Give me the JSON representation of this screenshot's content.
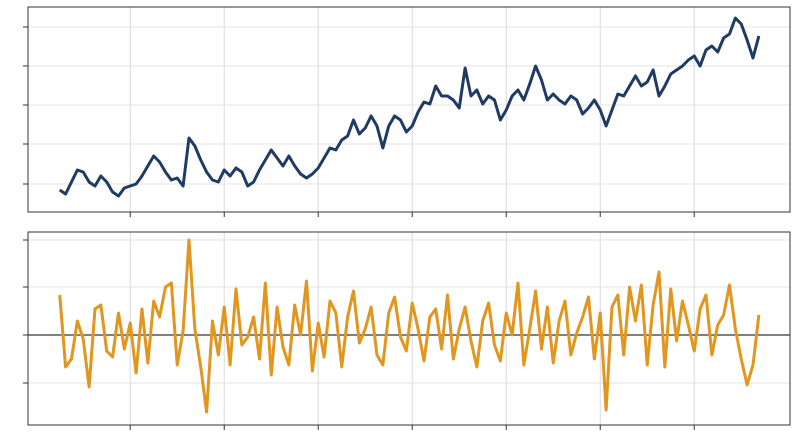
{
  "chart_data": [
    {
      "type": "line",
      "x": [
        0,
        1,
        2,
        3,
        4,
        5,
        6,
        7,
        8,
        9,
        10,
        11,
        12,
        13,
        14,
        15,
        16,
        17,
        18,
        19,
        20,
        21,
        22,
        23,
        24,
        25,
        26,
        27,
        28,
        29,
        30,
        31,
        32,
        33,
        34,
        35,
        36,
        37,
        38,
        39,
        40,
        41,
        42,
        43,
        44,
        45,
        46,
        47,
        48,
        49,
        50,
        51,
        52,
        53,
        54,
        55,
        56,
        57,
        58,
        59,
        60,
        61,
        62,
        63,
        64,
        65,
        66,
        67,
        68,
        69,
        70,
        71,
        72,
        73,
        74,
        75,
        76,
        77,
        78,
        79,
        80,
        81,
        82,
        83,
        84,
        85,
        86,
        87,
        88,
        89,
        90,
        91,
        92,
        93,
        94,
        95,
        96,
        97,
        98,
        99,
        100,
        101,
        102,
        103,
        104,
        105,
        106,
        107,
        108,
        109,
        110,
        111,
        112,
        113,
        114,
        115,
        116,
        117,
        118,
        119
      ],
      "series": [
        {
          "color": "#1f3b63",
          "values": [
            22,
            18,
            30,
            42,
            40,
            30,
            26,
            36,
            30,
            20,
            16,
            24,
            26,
            28,
            36,
            46,
            56,
            50,
            40,
            32,
            34,
            26,
            74,
            66,
            52,
            40,
            32,
            30,
            42,
            36,
            44,
            40,
            26,
            30,
            42,
            52,
            62,
            54,
            46,
            56,
            46,
            38,
            34,
            38,
            44,
            54,
            64,
            62,
            72,
            76,
            92,
            78,
            84,
            96,
            86,
            64,
            86,
            96,
            92,
            80,
            86,
            100,
            110,
            108,
            126,
            116,
            116,
            112,
            104,
            144,
            116,
            122,
            108,
            116,
            112,
            92,
            102,
            116,
            122,
            112,
            128,
            146,
            132,
            112,
            118,
            112,
            108,
            116,
            112,
            98,
            104,
            112,
            102,
            86,
            102,
            118,
            116,
            126,
            136,
            126,
            130,
            142,
            116,
            126,
            138,
            142,
            146,
            152,
            156,
            146,
            162,
            166,
            160,
            174,
            178,
            194,
            188,
            172,
            154,
            176
          ]
        }
      ],
      "xlim": [
        -5.4,
        124.3
      ],
      "xticks": [
        12,
        28,
        44,
        60,
        76,
        92,
        108
      ],
      "ylim": [
        0,
        205
      ],
      "yticks": [
        28,
        68,
        107,
        146,
        185
      ],
      "grid": true
    },
    {
      "type": "line",
      "x": [
        0,
        1,
        2,
        3,
        4,
        5,
        6,
        7,
        8,
        9,
        10,
        11,
        12,
        13,
        14,
        15,
        16,
        17,
        18,
        19,
        20,
        21,
        22,
        23,
        24,
        25,
        26,
        27,
        28,
        29,
        30,
        31,
        32,
        33,
        34,
        35,
        36,
        37,
        38,
        39,
        40,
        41,
        42,
        43,
        44,
        45,
        46,
        47,
        48,
        49,
        50,
        51,
        52,
        53,
        54,
        55,
        56,
        57,
        58,
        59,
        60,
        61,
        62,
        63,
        64,
        65,
        66,
        67,
        68,
        69,
        70,
        71,
        72,
        73,
        74,
        75,
        76,
        77,
        78,
        79,
        80,
        81,
        82,
        83,
        84,
        85,
        86,
        87,
        88,
        89,
        90,
        91,
        92,
        93,
        94,
        95,
        96,
        97,
        98,
        99,
        100,
        101,
        102,
        103,
        104,
        105,
        106,
        107,
        108,
        109,
        110,
        111,
        112,
        113,
        114,
        115,
        116,
        117,
        118,
        119
      ],
      "series": [
        {
          "color": "#e0961f",
          "values": [
            130,
            58,
            66,
            104,
            86,
            38,
            116,
            120,
            74,
            68,
            112,
            76,
            102,
            52,
            116,
            62,
            124,
            108,
            138,
            142,
            60,
            94,
            185,
            96,
            58,
            13,
            104,
            70,
            118,
            60,
            136,
            80,
            88,
            108,
            66,
            142,
            50,
            118,
            78,
            60,
            120,
            90,
            144,
            54,
            102,
            68,
            124,
            112,
            58,
            108,
            134,
            82,
            96,
            118,
            70,
            60,
            112,
            128,
            88,
            74,
            122,
            96,
            64,
            108,
            116,
            76,
            130,
            66,
            96,
            118,
            84,
            58,
            104,
            122,
            80,
            64,
            112,
            90,
            142,
            60,
            96,
            134,
            76,
            118,
            62,
            104,
            124,
            70,
            92,
            108,
            128,
            66,
            112,
            15,
            118,
            130,
            70,
            138,
            104,
            140,
            60,
            120,
            153,
            58,
            136,
            84,
            124,
            100,
            74,
            116,
            130,
            70,
            100,
            110,
            140,
            96,
            66,
            40,
            60,
            110
          ]
        }
      ],
      "xlim": [
        -5.4,
        124.3
      ],
      "xticks": [
        12,
        28,
        44,
        60,
        76,
        92,
        108
      ],
      "ylim": [
        0,
        193
      ],
      "yticks": [
        42,
        90,
        138,
        185
      ],
      "baseline": 90,
      "grid": true
    }
  ]
}
